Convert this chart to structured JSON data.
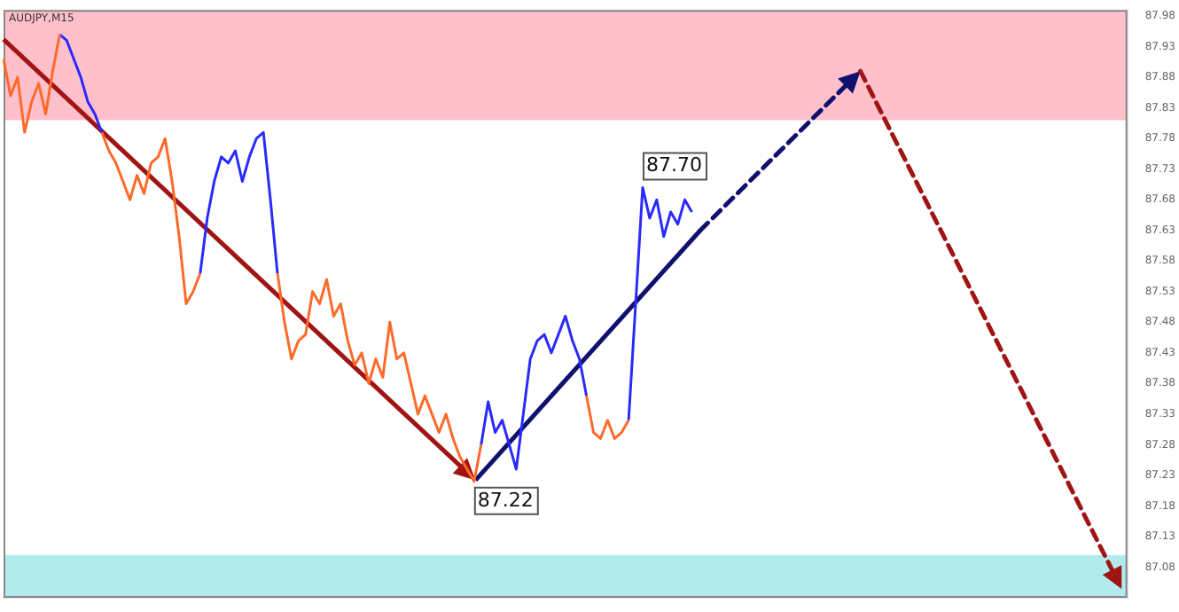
{
  "chart_data": {
    "type": "line",
    "title": "AUDJPY,M15",
    "categories": [
      null,
      null,
      null,
      null,
      null,
      null,
      null,
      null,
      null,
      null,
      null,
      null,
      null,
      null,
      null,
      null,
      null,
      null,
      null,
      null,
      null,
      null,
      null,
      null,
      null,
      null,
      null,
      null,
      null,
      null,
      null,
      null,
      null,
      null,
      null,
      null,
      null,
      null,
      null,
      null,
      null,
      null,
      null,
      null,
      null,
      null,
      null,
      null,
      null,
      null,
      null,
      null,
      null,
      null,
      null,
      null,
      null,
      null,
      null,
      null,
      null,
      null,
      null,
      null,
      null,
      null,
      null,
      null,
      null,
      null,
      null,
      null,
      null,
      null,
      null,
      null,
      null,
      null,
      null,
      null,
      null,
      null,
      null,
      null,
      null,
      null,
      null,
      null,
      null,
      null,
      null,
      null,
      null,
      null,
      null,
      null,
      null,
      null,
      null,
      null,
      null,
      null,
      null,
      null,
      null,
      null,
      null,
      null,
      null,
      null,
      null,
      null,
      null,
      null,
      null,
      null,
      null,
      null,
      null,
      null,
      null,
      null,
      null,
      null,
      null,
      null,
      null,
      null,
      null,
      null,
      null,
      null,
      null,
      null,
      null,
      null,
      null,
      null,
      null,
      null,
      null,
      null,
      null,
      null,
      null,
      null,
      null,
      null,
      null,
      null,
      null,
      null,
      null,
      null,
      null,
      null,
      null,
      null,
      null,
      null,
      null
    ],
    "series": [
      {
        "color": "#ff6a2a",
        "values": [
          87.91,
          87.85,
          87.88,
          87.79,
          87.84,
          87.87,
          87.82,
          87.89,
          87.95,
          null,
          null,
          null,
          null,
          null,
          87.79,
          87.76,
          87.74,
          87.71,
          87.68,
          87.72,
          87.69,
          87.74,
          87.75,
          87.78,
          87.71,
          87.62,
          87.51,
          87.53,
          87.56,
          null,
          null,
          null,
          null,
          null,
          null,
          null,
          null,
          null,
          null,
          87.56,
          87.48,
          87.42,
          87.45,
          87.46,
          87.53,
          87.51,
          87.55,
          87.49,
          87.51,
          87.45,
          87.41,
          87.43,
          87.38,
          87.42,
          87.39,
          87.48,
          87.42,
          87.43,
          87.38,
          87.33,
          87.36,
          87.33,
          87.3,
          87.33,
          87.29,
          87.26,
          87.24,
          87.22,
          87.28,
          null,
          null,
          null,
          null,
          null,
          null,
          null,
          null,
          null,
          null,
          null,
          null,
          null,
          null,
          87.36,
          87.3,
          87.29,
          87.32,
          87.29,
          87.3,
          87.32,
          null,
          null,
          null,
          null,
          null,
          null,
          null,
          null,
          null,
          null,
          null,
          null,
          null,
          null,
          null,
          null,
          null,
          null,
          null,
          null,
          null,
          null,
          null,
          null,
          null,
          null,
          null,
          null,
          null,
          null,
          null,
          null,
          null,
          null,
          null,
          null,
          null,
          null,
          null,
          null,
          null,
          null,
          null,
          null,
          null,
          null,
          null,
          null,
          null,
          null,
          null,
          null,
          null,
          null,
          null,
          null,
          null,
          null,
          null,
          null,
          null,
          null,
          null,
          null,
          null,
          null,
          null,
          null,
          null,
          null,
          null
        ],
        "value_labels": [
          null,
          null,
          null,
          null,
          null,
          null,
          null,
          null,
          null,
          null,
          null,
          null,
          null,
          null,
          null,
          null,
          null,
          null,
          null,
          null,
          null,
          null,
          null,
          null,
          null,
          null,
          null,
          null,
          null,
          null,
          null,
          null,
          null,
          null,
          null,
          null,
          null,
          null,
          null,
          null,
          null,
          null,
          null,
          null,
          null,
          null,
          null,
          null,
          null,
          null,
          null,
          null,
          null,
          null,
          null,
          null,
          null,
          null,
          null,
          null,
          null,
          null,
          null,
          null,
          null,
          null,
          null,
          "87.22",
          null,
          null,
          null,
          null,
          null,
          null,
          null,
          null,
          null,
          null,
          null,
          null,
          null,
          null,
          null,
          null,
          null,
          null,
          null,
          null,
          null,
          null,
          null,
          null,
          null,
          null,
          null,
          null,
          null,
          null,
          null,
          null,
          null,
          null,
          null,
          null,
          null,
          null,
          null,
          null,
          null,
          null,
          null,
          null,
          null,
          null,
          null,
          null,
          null,
          null,
          null,
          null,
          null,
          null,
          null,
          null,
          null,
          null,
          null,
          null,
          null,
          null,
          null,
          null,
          null,
          null,
          null,
          null,
          null,
          null,
          null,
          null,
          null,
          null,
          null,
          null,
          null,
          null,
          null,
          null,
          null,
          null,
          null,
          null,
          null,
          null,
          null,
          null,
          null,
          null,
          null,
          null,
          null
        ]
      },
      {
        "color": "#2a2aff",
        "values": [
          null,
          null,
          null,
          null,
          null,
          null,
          null,
          null,
          87.95,
          87.94,
          87.91,
          87.88,
          87.84,
          87.82,
          87.79,
          null,
          null,
          null,
          null,
          null,
          null,
          null,
          null,
          null,
          null,
          null,
          null,
          null,
          87.56,
          87.65,
          87.71,
          87.75,
          87.74,
          87.76,
          87.71,
          87.75,
          87.78,
          87.79,
          87.68,
          87.56,
          null,
          null,
          null,
          null,
          null,
          null,
          null,
          null,
          null,
          null,
          null,
          null,
          null,
          null,
          null,
          null,
          null,
          null,
          null,
          null,
          null,
          null,
          null,
          null,
          null,
          null,
          null,
          null,
          87.28,
          87.35,
          87.3,
          87.32,
          87.28,
          87.24,
          87.33,
          87.42,
          87.45,
          87.46,
          87.43,
          87.46,
          87.49,
          87.45,
          87.42,
          87.36,
          null,
          null,
          null,
          null,
          null,
          87.32,
          87.51,
          87.7,
          87.65,
          87.68,
          87.62,
          87.66,
          87.64,
          87.68,
          87.66,
          null,
          null,
          null,
          null,
          null,
          null,
          null,
          null,
          null,
          null,
          null,
          null,
          null,
          null,
          null,
          null,
          null,
          null,
          null,
          null,
          null,
          null,
          null,
          null,
          null,
          null,
          null,
          null,
          null,
          null,
          null,
          null,
          null,
          null,
          null,
          null,
          null,
          null,
          null,
          null,
          null,
          null,
          null,
          null,
          null,
          null,
          null,
          null,
          null,
          null,
          null,
          null,
          null,
          null,
          null,
          null,
          null,
          null,
          null,
          null,
          null,
          null
        ],
        "value_labels": [
          null,
          null,
          null,
          null,
          null,
          null,
          null,
          null,
          null,
          null,
          null,
          null,
          null,
          null,
          null,
          null,
          null,
          null,
          null,
          null,
          null,
          null,
          null,
          null,
          null,
          null,
          null,
          null,
          null,
          null,
          null,
          null,
          null,
          null,
          null,
          null,
          null,
          null,
          null,
          null,
          null,
          null,
          null,
          null,
          null,
          null,
          null,
          null,
          null,
          null,
          null,
          null,
          null,
          null,
          null,
          null,
          null,
          null,
          null,
          null,
          null,
          null,
          null,
          null,
          null,
          null,
          null,
          null,
          null,
          null,
          null,
          null,
          null,
          null,
          null,
          null,
          null,
          null,
          null,
          null,
          null,
          null,
          null,
          null,
          null,
          null,
          null,
          null,
          null,
          null,
          null,
          "87.70",
          null,
          null,
          null,
          null,
          null,
          null,
          null,
          null,
          null,
          null,
          null,
          null,
          null,
          null,
          null,
          null,
          null,
          null,
          null,
          null,
          null,
          null,
          null,
          null,
          null,
          null,
          null,
          null,
          null,
          null,
          null,
          null,
          null,
          null,
          null,
          null,
          null,
          null,
          null,
          null,
          null,
          null,
          null,
          null,
          null,
          null,
          null,
          null,
          null,
          null,
          null,
          null,
          null,
          null,
          null,
          null,
          null,
          null,
          null,
          null,
          null,
          null,
          null,
          null,
          null,
          null,
          null,
          null,
          null
        ]
      }
    ],
    "bands": [
      {
        "axis": "y",
        "from": 87.81,
        "to": 87.99,
        "color": "#ffc0cb"
      },
      {
        "axis": "y",
        "from": 87.03,
        "to": 87.1,
        "color": "#b2ebeb"
      }
    ],
    "ylim": [
      87.03,
      87.99
    ],
    "yticks": [
      87.08,
      87.13,
      87.18,
      87.23,
      87.28,
      87.33,
      87.38,
      87.43,
      87.48,
      87.53,
      87.58,
      87.63,
      87.68,
      87.73,
      87.78,
      87.83,
      87.88,
      87.93,
      87.98
    ],
    "grid": false,
    "legend": false,
    "tick_labels": "y"
  }
}
